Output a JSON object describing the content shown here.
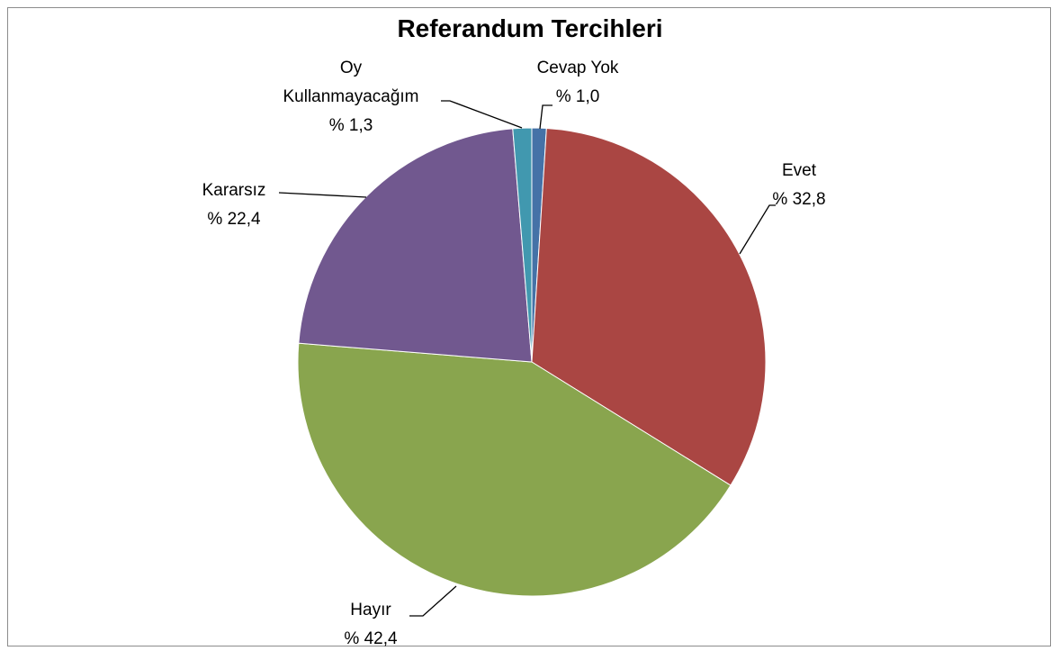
{
  "chart_data": {
    "type": "pie",
    "title": "Referandum Tercihleri",
    "categories": [
      "Cevap Yok",
      "Evet",
      "Hayır",
      "Kararsız",
      "Oy Kullanmayacağım"
    ],
    "values": [
      1.0,
      32.8,
      42.4,
      22.4,
      1.3
    ],
    "value_labels": [
      "% 1,0",
      "% 32,8",
      "% 42,4",
      "% 22,4",
      "% 1,3"
    ],
    "colors": [
      "#4572a7",
      "#aa4643",
      "#89a54e",
      "#71588f",
      "#4198af"
    ]
  }
}
